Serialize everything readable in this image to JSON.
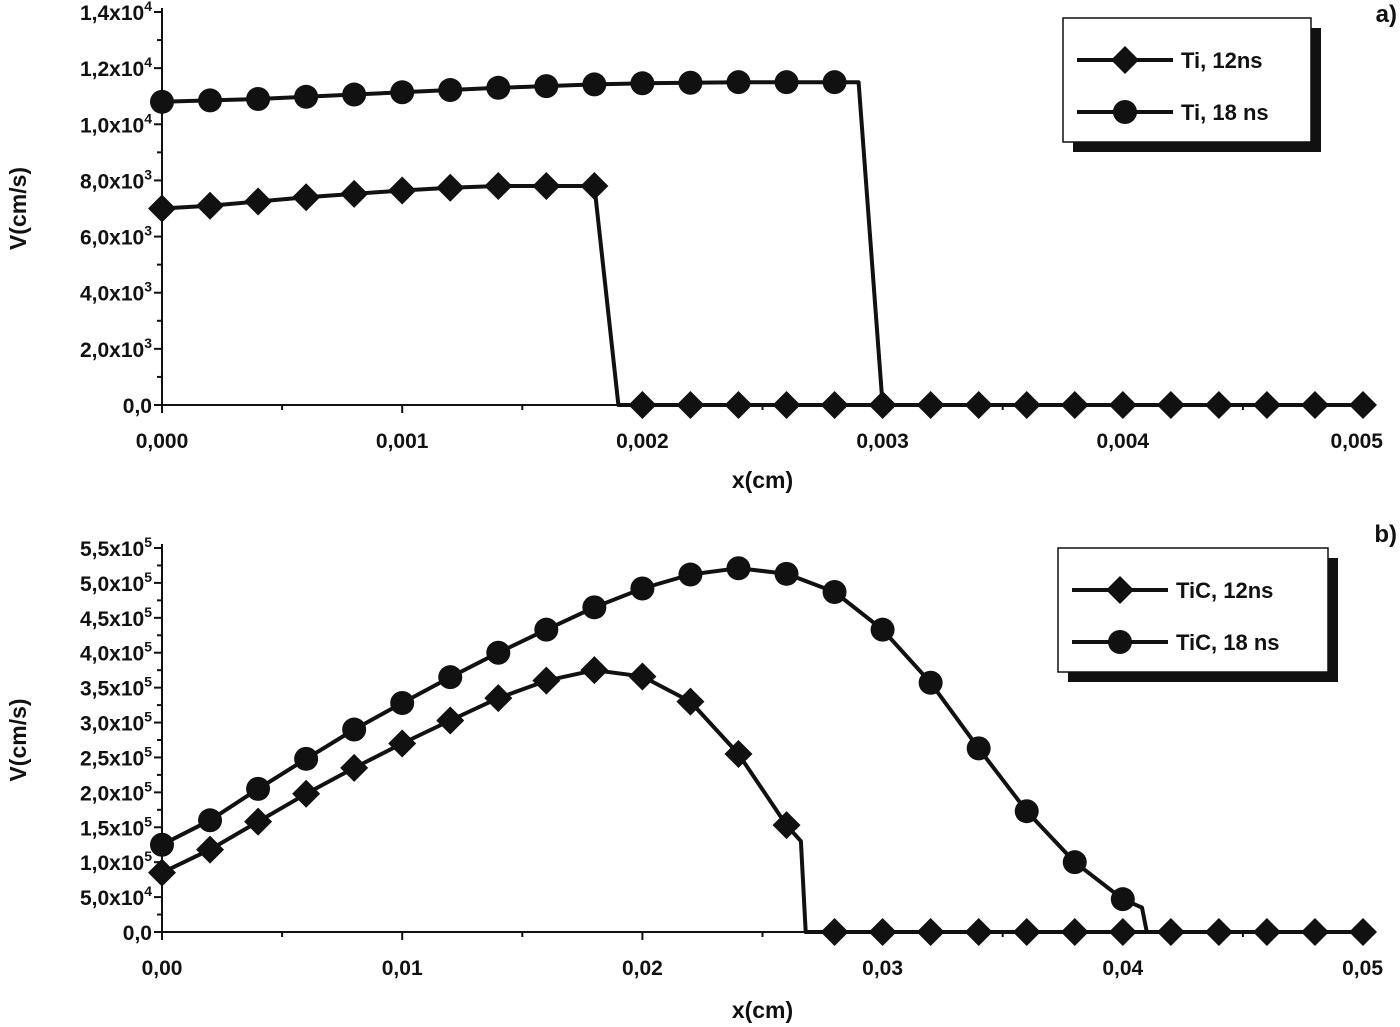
{
  "chart_data": [
    {
      "type": "line",
      "panel_label": "a)",
      "xlabel": "x(cm)",
      "ylabel": "V(cm/s)",
      "xlim": [
        0,
        0.005
      ],
      "ylim": [
        0,
        14000
      ],
      "x_ticks": [
        {
          "value": 0,
          "label": "0,000"
        },
        {
          "value": 0.001,
          "label": "0,001"
        },
        {
          "value": 0.002,
          "label": "0,002"
        },
        {
          "value": 0.003,
          "label": "0,003"
        },
        {
          "value": 0.004,
          "label": "0,004"
        },
        {
          "value": 0.005,
          "label": "0,005"
        }
      ],
      "y_ticks": [
        {
          "value": 0,
          "mantissa": "0,0",
          "exp": ""
        },
        {
          "value": 2000,
          "mantissa": "2,0x10",
          "exp": "3"
        },
        {
          "value": 4000,
          "mantissa": "4,0x10",
          "exp": "3"
        },
        {
          "value": 6000,
          "mantissa": "6,0x10",
          "exp": "3"
        },
        {
          "value": 8000,
          "mantissa": "8,0x10",
          "exp": "3"
        },
        {
          "value": 10000,
          "mantissa": "1,0x10",
          "exp": "4"
        },
        {
          "value": 12000,
          "mantissa": "1,2x10",
          "exp": "4"
        },
        {
          "value": 14000,
          "mantissa": "1,4x10",
          "exp": "4"
        }
      ],
      "grid": false,
      "legend_position": "top-right",
      "series": [
        {
          "name": "Ti, 12ns",
          "marker": "diamond",
          "x": [
            0,
            0.0002,
            0.0004,
            0.0006,
            0.0008,
            0.001,
            0.0012,
            0.0014,
            0.0016,
            0.0018,
            0.0019,
            0.002,
            0.0022,
            0.0024,
            0.0026,
            0.0028,
            0.003,
            0.0032,
            0.0034,
            0.0036,
            0.0038,
            0.004,
            0.0042,
            0.0044,
            0.0046,
            0.0048,
            0.005
          ],
          "y": [
            7000,
            7100,
            7250,
            7400,
            7520,
            7640,
            7740,
            7800,
            7800,
            7800,
            0,
            0,
            0,
            0,
            0,
            0,
            0,
            0,
            0,
            0,
            0,
            0,
            0,
            0,
            0,
            0,
            0
          ],
          "markers_at": [
            0,
            0.0002,
            0.0004,
            0.0006,
            0.0008,
            0.001,
            0.0012,
            0.0014,
            0.0016,
            0.0018,
            0.002,
            0.0022,
            0.0024,
            0.0026,
            0.0028,
            0.003,
            0.0032,
            0.0034,
            0.0036,
            0.0038,
            0.004,
            0.0042,
            0.0044,
            0.0046,
            0.0048,
            0.005
          ]
        },
        {
          "name": "Ti, 18 ns",
          "marker": "circle",
          "x": [
            0,
            0.0002,
            0.0004,
            0.0006,
            0.0008,
            0.001,
            0.0012,
            0.0014,
            0.0016,
            0.0018,
            0.002,
            0.0022,
            0.0024,
            0.0026,
            0.0028,
            0.0029,
            0.003
          ],
          "y": [
            10800,
            10850,
            10900,
            10980,
            11060,
            11140,
            11220,
            11300,
            11360,
            11420,
            11460,
            11480,
            11500,
            11500,
            11500,
            11500,
            0
          ],
          "markers_at": [
            0,
            0.0002,
            0.0004,
            0.0006,
            0.0008,
            0.001,
            0.0012,
            0.0014,
            0.0016,
            0.0018,
            0.002,
            0.0022,
            0.0024,
            0.0026,
            0.0028
          ]
        }
      ]
    },
    {
      "type": "line",
      "panel_label": "b)",
      "xlabel": "x(cm)",
      "ylabel": "V(cm/s)",
      "xlim": [
        0,
        0.05
      ],
      "ylim": [
        0,
        550000
      ],
      "x_ticks": [
        {
          "value": 0,
          "label": "0,00"
        },
        {
          "value": 0.01,
          "label": "0,01"
        },
        {
          "value": 0.02,
          "label": "0,02"
        },
        {
          "value": 0.03,
          "label": "0,03"
        },
        {
          "value": 0.04,
          "label": "0,04"
        },
        {
          "value": 0.05,
          "label": "0,05"
        }
      ],
      "y_ticks": [
        {
          "value": 0,
          "mantissa": "0,0",
          "exp": ""
        },
        {
          "value": 50000,
          "mantissa": "5,0x10",
          "exp": "4"
        },
        {
          "value": 100000,
          "mantissa": "1,0x10",
          "exp": "5"
        },
        {
          "value": 150000,
          "mantissa": "1,5x10",
          "exp": "5"
        },
        {
          "value": 200000,
          "mantissa": "2,0x10",
          "exp": "5"
        },
        {
          "value": 250000,
          "mantissa": "2,5x10",
          "exp": "5"
        },
        {
          "value": 300000,
          "mantissa": "3,0x10",
          "exp": "5"
        },
        {
          "value": 350000,
          "mantissa": "3,5x10",
          "exp": "5"
        },
        {
          "value": 400000,
          "mantissa": "4,0x10",
          "exp": "5"
        },
        {
          "value": 450000,
          "mantissa": "4,5x10",
          "exp": "5"
        },
        {
          "value": 500000,
          "mantissa": "5,0x10",
          "exp": "5"
        },
        {
          "value": 550000,
          "mantissa": "5,5x10",
          "exp": "5"
        }
      ],
      "grid": false,
      "legend_position": "top-right",
      "series": [
        {
          "name": "TiC, 12ns",
          "marker": "diamond",
          "x": [
            0,
            0.002,
            0.004,
            0.006,
            0.008,
            0.01,
            0.012,
            0.014,
            0.016,
            0.018,
            0.02,
            0.022,
            0.024,
            0.026,
            0.0266,
            0.0268,
            0.028,
            0.03,
            0.032,
            0.034,
            0.036,
            0.038,
            0.04,
            0.042,
            0.044,
            0.046,
            0.048,
            0.05
          ],
          "y": [
            85000,
            118000,
            158000,
            198000,
            235000,
            270000,
            303000,
            335000,
            360000,
            375000,
            366000,
            330000,
            255000,
            153000,
            130000,
            0,
            0,
            0,
            0,
            0,
            0,
            0,
            0,
            0,
            0,
            0,
            0,
            0
          ],
          "markers_at": [
            0,
            0.002,
            0.004,
            0.006,
            0.008,
            0.01,
            0.012,
            0.014,
            0.016,
            0.018,
            0.02,
            0.022,
            0.024,
            0.026,
            0.028,
            0.03,
            0.032,
            0.034,
            0.036,
            0.038,
            0.04,
            0.042,
            0.044,
            0.046,
            0.048,
            0.05
          ]
        },
        {
          "name": "TiC, 18 ns",
          "marker": "circle",
          "x": [
            0,
            0.002,
            0.004,
            0.006,
            0.008,
            0.01,
            0.012,
            0.014,
            0.016,
            0.018,
            0.02,
            0.022,
            0.024,
            0.026,
            0.028,
            0.03,
            0.032,
            0.034,
            0.036,
            0.038,
            0.04,
            0.0408,
            0.041,
            0.042,
            0.044,
            0.046,
            0.048,
            0.05
          ],
          "y": [
            125000,
            160000,
            205000,
            248000,
            290000,
            328000,
            365000,
            400000,
            433000,
            465000,
            492000,
            512000,
            521000,
            513000,
            487000,
            433000,
            357000,
            263000,
            173000,
            100000,
            47000,
            35000,
            0,
            0,
            0,
            0,
            0,
            0
          ],
          "markers_at": [
            0,
            0.002,
            0.004,
            0.006,
            0.008,
            0.01,
            0.012,
            0.014,
            0.016,
            0.018,
            0.02,
            0.022,
            0.024,
            0.026,
            0.028,
            0.03,
            0.032,
            0.034,
            0.036,
            0.038,
            0.04
          ]
        }
      ]
    }
  ]
}
